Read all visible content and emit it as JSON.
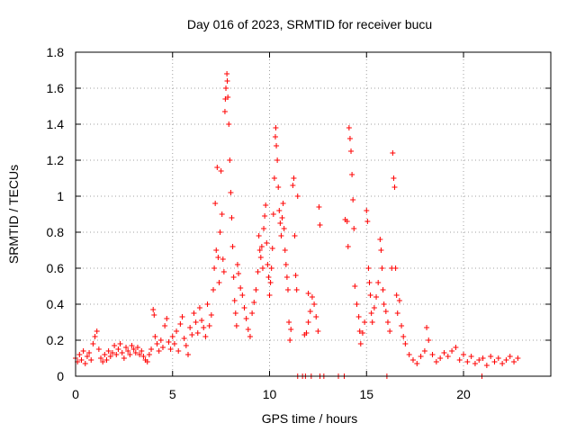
{
  "chart_data": {
    "type": "scatter",
    "title": "Day 016 of 2023, SRMTID for receiver bucu",
    "xlabel": "GPS time / hours",
    "ylabel": "SRMTID / TECUs",
    "xlim": [
      0,
      24.5
    ],
    "ylim": [
      0,
      1.8
    ],
    "xticks": [
      0,
      5,
      10,
      15,
      20
    ],
    "yticks": [
      0,
      0.2,
      0.4,
      0.6,
      0.8,
      1,
      1.2,
      1.4,
      1.6,
      1.8
    ],
    "xtick_labels": [
      "0",
      "5",
      "10",
      "15",
      "20"
    ],
    "ytick_labels": [
      "0",
      "0.2",
      "0.4",
      "0.6",
      "0.8",
      "1",
      "1.2",
      "1.4",
      "1.6",
      "1.8"
    ],
    "grid": true,
    "marker": "plus",
    "color": "#ff0000",
    "series": [
      {
        "name": "SRMTID",
        "points": [
          [
            0.0,
            0.1
          ],
          [
            0.1,
            0.08
          ],
          [
            0.2,
            0.12
          ],
          [
            0.3,
            0.09
          ],
          [
            0.4,
            0.14
          ],
          [
            0.5,
            0.07
          ],
          [
            0.6,
            0.11
          ],
          [
            0.7,
            0.13
          ],
          [
            0.8,
            0.09
          ],
          [
            0.9,
            0.18
          ],
          [
            1.0,
            0.22
          ],
          [
            1.1,
            0.25
          ],
          [
            1.2,
            0.15
          ],
          [
            1.3,
            0.1
          ],
          [
            1.4,
            0.08
          ],
          [
            1.5,
            0.12
          ],
          [
            1.6,
            0.09
          ],
          [
            1.7,
            0.14
          ],
          [
            1.8,
            0.11
          ],
          [
            1.9,
            0.13
          ],
          [
            2.0,
            0.17
          ],
          [
            2.1,
            0.12
          ],
          [
            2.2,
            0.15
          ],
          [
            2.3,
            0.18
          ],
          [
            2.4,
            0.13
          ],
          [
            2.5,
            0.1
          ],
          [
            2.6,
            0.16
          ],
          [
            2.7,
            0.14
          ],
          [
            2.8,
            0.12
          ],
          [
            2.9,
            0.17
          ],
          [
            3.0,
            0.15
          ],
          [
            3.1,
            0.13
          ],
          [
            3.2,
            0.16
          ],
          [
            3.3,
            0.12
          ],
          [
            3.4,
            0.14
          ],
          [
            3.5,
            0.11
          ],
          [
            3.6,
            0.09
          ],
          [
            3.7,
            0.08
          ],
          [
            3.8,
            0.12
          ],
          [
            3.9,
            0.15
          ],
          [
            4.0,
            0.37
          ],
          [
            4.05,
            0.34
          ],
          [
            4.1,
            0.22
          ],
          [
            4.2,
            0.18
          ],
          [
            4.3,
            0.14
          ],
          [
            4.4,
            0.2
          ],
          [
            4.5,
            0.16
          ],
          [
            4.6,
            0.28
          ],
          [
            4.7,
            0.32
          ],
          [
            4.8,
            0.19
          ],
          [
            4.9,
            0.15
          ],
          [
            5.0,
            0.22
          ],
          [
            5.1,
            0.18
          ],
          [
            5.2,
            0.25
          ],
          [
            5.3,
            0.14
          ],
          [
            5.4,
            0.29
          ],
          [
            5.5,
            0.33
          ],
          [
            5.6,
            0.21
          ],
          [
            5.7,
            0.17
          ],
          [
            5.8,
            0.12
          ],
          [
            5.9,
            0.27
          ],
          [
            6.0,
            0.23
          ],
          [
            6.1,
            0.35
          ],
          [
            6.2,
            0.3
          ],
          [
            6.3,
            0.24
          ],
          [
            6.4,
            0.38
          ],
          [
            6.5,
            0.31
          ],
          [
            6.6,
            0.27
          ],
          [
            6.7,
            0.22
          ],
          [
            6.8,
            0.4
          ],
          [
            6.9,
            0.28
          ],
          [
            7.0,
            0.34
          ],
          [
            7.1,
            0.48
          ],
          [
            7.15,
            0.6
          ],
          [
            7.2,
            0.96
          ],
          [
            7.25,
            0.7
          ],
          [
            7.3,
            1.16
          ],
          [
            7.35,
            0.66
          ],
          [
            7.4,
            0.52
          ],
          [
            7.45,
            0.8
          ],
          [
            7.5,
            1.14
          ],
          [
            7.55,
            0.9
          ],
          [
            7.6,
            0.65
          ],
          [
            7.65,
            0.58
          ],
          [
            7.7,
            1.47
          ],
          [
            7.72,
            1.54
          ],
          [
            7.75,
            1.6
          ],
          [
            7.8,
            1.68
          ],
          [
            7.82,
            1.64
          ],
          [
            7.85,
            1.55
          ],
          [
            7.9,
            1.4
          ],
          [
            7.95,
            1.2
          ],
          [
            8.0,
            1.02
          ],
          [
            8.05,
            0.88
          ],
          [
            8.1,
            0.72
          ],
          [
            8.15,
            0.55
          ],
          [
            8.2,
            0.42
          ],
          [
            8.25,
            0.35
          ],
          [
            8.3,
            0.28
          ],
          [
            8.35,
            0.62
          ],
          [
            8.4,
            0.57
          ],
          [
            8.5,
            0.49
          ],
          [
            8.6,
            0.45
          ],
          [
            8.7,
            0.38
          ],
          [
            8.8,
            0.32
          ],
          [
            8.9,
            0.26
          ],
          [
            9.0,
            0.22
          ],
          [
            9.1,
            0.35
          ],
          [
            9.2,
            0.41
          ],
          [
            9.3,
            0.48
          ],
          [
            9.4,
            0.58
          ],
          [
            9.45,
            0.78
          ],
          [
            9.5,
            0.7
          ],
          [
            9.55,
            0.66
          ],
          [
            9.6,
            0.72
          ],
          [
            9.65,
            0.6
          ],
          [
            9.7,
            0.82
          ],
          [
            9.75,
            0.89
          ],
          [
            9.8,
            0.95
          ],
          [
            9.85,
            0.74
          ],
          [
            9.9,
            0.62
          ],
          [
            9.95,
            0.55
          ],
          [
            10.0,
            0.45
          ],
          [
            10.05,
            0.52
          ],
          [
            10.1,
            0.6
          ],
          [
            10.15,
            0.71
          ],
          [
            10.2,
            0.9
          ],
          [
            10.25,
            1.1
          ],
          [
            10.3,
            1.33
          ],
          [
            10.32,
            1.38
          ],
          [
            10.35,
            1.28
          ],
          [
            10.4,
            1.2
          ],
          [
            10.45,
            1.05
          ],
          [
            10.5,
            0.92
          ],
          [
            10.55,
            0.85
          ],
          [
            10.6,
            0.78
          ],
          [
            10.65,
            0.88
          ],
          [
            10.7,
            0.96
          ],
          [
            10.75,
            0.82
          ],
          [
            10.8,
            0.7
          ],
          [
            10.85,
            0.62
          ],
          [
            10.9,
            0.55
          ],
          [
            10.95,
            0.48
          ],
          [
            11.0,
            0.3
          ],
          [
            11.05,
            0.2
          ],
          [
            11.1,
            0.26
          ],
          [
            11.2,
            1.06
          ],
          [
            11.25,
            1.1
          ],
          [
            11.3,
            0.78
          ],
          [
            11.35,
            0.56
          ],
          [
            11.4,
            0.48
          ],
          [
            11.45,
            1.0
          ],
          [
            11.8,
            0.23
          ],
          [
            11.9,
            0.24
          ],
          [
            12.0,
            0.3
          ],
          [
            12.1,
            0.36
          ],
          [
            12.2,
            0.44
          ],
          [
            12.3,
            0.4
          ],
          [
            12.4,
            0.33
          ],
          [
            12.5,
            0.25
          ],
          [
            12.55,
            0.94
          ],
          [
            12.6,
            0.84
          ],
          [
            12.0,
            0.46
          ],
          [
            13.9,
            0.87
          ],
          [
            14.0,
            0.86
          ],
          [
            14.05,
            0.72
          ],
          [
            14.1,
            1.38
          ],
          [
            14.15,
            1.32
          ],
          [
            14.2,
            1.25
          ],
          [
            14.25,
            1.12
          ],
          [
            14.3,
            0.98
          ],
          [
            14.35,
            0.82
          ],
          [
            14.4,
            0.5
          ],
          [
            14.5,
            0.4
          ],
          [
            14.6,
            0.33
          ],
          [
            14.65,
            0.25
          ],
          [
            14.7,
            0.18
          ],
          [
            14.8,
            0.24
          ],
          [
            14.9,
            0.3
          ],
          [
            15.0,
            0.92
          ],
          [
            15.05,
            0.86
          ],
          [
            15.1,
            0.6
          ],
          [
            15.15,
            0.52
          ],
          [
            15.2,
            0.45
          ],
          [
            15.25,
            0.35
          ],
          [
            15.3,
            0.3
          ],
          [
            15.4,
            0.38
          ],
          [
            15.5,
            0.44
          ],
          [
            15.6,
            0.52
          ],
          [
            15.7,
            0.76
          ],
          [
            15.75,
            0.7
          ],
          [
            15.8,
            0.6
          ],
          [
            15.85,
            0.48
          ],
          [
            15.9,
            0.4
          ],
          [
            16.0,
            0.36
          ],
          [
            16.1,
            0.3
          ],
          [
            16.2,
            0.25
          ],
          [
            16.3,
            0.6
          ],
          [
            16.35,
            1.24
          ],
          [
            16.4,
            1.1
          ],
          [
            16.45,
            1.05
          ],
          [
            16.5,
            0.6
          ],
          [
            16.55,
            0.45
          ],
          [
            16.6,
            0.35
          ],
          [
            16.7,
            0.42
          ],
          [
            16.8,
            0.28
          ],
          [
            16.9,
            0.22
          ],
          [
            17.0,
            0.18
          ],
          [
            17.2,
            0.12
          ],
          [
            17.4,
            0.09
          ],
          [
            17.6,
            0.07
          ],
          [
            17.8,
            0.11
          ],
          [
            18.0,
            0.14
          ],
          [
            18.1,
            0.27
          ],
          [
            18.2,
            0.2
          ],
          [
            18.4,
            0.12
          ],
          [
            18.6,
            0.08
          ],
          [
            18.8,
            0.1
          ],
          [
            19.0,
            0.13
          ],
          [
            19.2,
            0.11
          ],
          [
            19.4,
            0.14
          ],
          [
            19.6,
            0.16
          ],
          [
            19.8,
            0.09
          ],
          [
            20.0,
            0.12
          ],
          [
            20.2,
            0.08
          ],
          [
            20.4,
            0.11
          ],
          [
            20.6,
            0.07
          ],
          [
            20.8,
            0.09
          ],
          [
            21.0,
            0.1
          ],
          [
            21.2,
            0.06
          ],
          [
            21.4,
            0.11
          ],
          [
            21.6,
            0.08
          ],
          [
            21.8,
            0.1
          ],
          [
            22.0,
            0.07
          ],
          [
            22.2,
            0.09
          ],
          [
            22.4,
            0.11
          ],
          [
            22.6,
            0.08
          ],
          [
            22.8,
            0.1
          ],
          [
            11.45,
            0.0
          ],
          [
            11.7,
            0.0
          ],
          [
            11.85,
            0.0
          ],
          [
            12.15,
            0.0
          ],
          [
            12.6,
            0.0
          ],
          [
            12.8,
            0.0
          ],
          [
            13.55,
            0.0
          ],
          [
            13.85,
            0.0
          ],
          [
            16.05,
            0.0
          ],
          [
            20.95,
            0.0
          ]
        ]
      }
    ]
  }
}
